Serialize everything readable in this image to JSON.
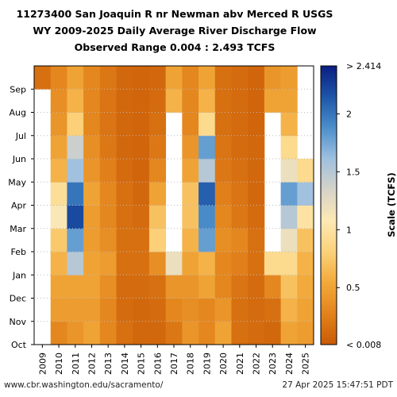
{
  "chart_data": {
    "type": "heatmap",
    "title_lines": [
      "11273400 San Joaquin R nr Newman abv Merced R USGS",
      "WY 2009-2025 Daily Average River Discharge Flow",
      "Observed Range 0.004 : 2.493 TCFS"
    ],
    "x_categories": [
      "2009",
      "2010",
      "2011",
      "2012",
      "2013",
      "2014",
      "2015",
      "2016",
      "2017",
      "2018",
      "2019",
      "2020",
      "2021",
      "2022",
      "2023",
      "2024",
      "2025"
    ],
    "y_month_labels": [
      "Oct",
      "Nov",
      "Dec",
      "Jan",
      "Feb",
      "Mar",
      "Apr",
      "May",
      "Jun",
      "Jul",
      "Aug",
      "Sep"
    ],
    "colorbar": {
      "label": "Scale (TCFS)",
      "range": [
        0.008,
        2.414
      ],
      "top_label": "> 2.414",
      "bottom_label": "< 0.008",
      "ticks": [
        {
          "value": 0.5,
          "label": "0.5"
        },
        {
          "value": 1,
          "label": "1"
        },
        {
          "value": 1.5,
          "label": "1.5"
        },
        {
          "value": 2,
          "label": "2"
        }
      ],
      "colors": [
        "#c95a05",
        "#e3831c",
        "#f3a93a",
        "#fbd27a",
        "#fde9b4",
        "#d6d3c8",
        "#9fc0df",
        "#4c8fcb",
        "#1d55a8",
        "#0a1e82"
      ]
    },
    "monthly_flow_tcfs": [
      [
        null,
        null,
        null,
        null,
        null,
        null,
        null,
        null,
        null,
        null,
        null,
        0.15
      ],
      [
        0.3,
        0.45,
        0.5,
        0.6,
        0.75,
        1.1,
        0.95,
        0.6,
        0.5,
        0.4,
        0.35,
        0.3
      ],
      [
        0.4,
        0.45,
        0.5,
        1.5,
        1.8,
        2.2,
        2.0,
        1.6,
        1.4,
        0.8,
        0.6,
        0.5
      ],
      [
        0.5,
        0.45,
        0.5,
        0.5,
        0.45,
        0.45,
        0.5,
        0.4,
        0.35,
        0.3,
        0.3,
        0.3
      ],
      [
        0.3,
        0.3,
        0.35,
        0.45,
        0.35,
        0.3,
        0.3,
        0.25,
        0.2,
        0.18,
        0.18,
        0.2
      ],
      [
        0.15,
        0.12,
        0.12,
        0.15,
        0.15,
        0.15,
        0.15,
        0.12,
        0.1,
        0.1,
        0.1,
        0.1
      ],
      [
        0.1,
        0.1,
        0.12,
        0.15,
        0.15,
        0.12,
        0.1,
        0.08,
        0.08,
        0.08,
        0.08,
        0.08
      ],
      [
        0.1,
        0.12,
        0.15,
        0.35,
        0.8,
        0.7,
        0.5,
        0.3,
        0.2,
        0.15,
        0.12,
        0.1
      ],
      [
        0.2,
        0.3,
        0.4,
        1.2,
        null,
        null,
        null,
        null,
        null,
        null,
        0.6,
        0.5
      ],
      [
        0.4,
        0.35,
        0.4,
        0.5,
        0.6,
        0.7,
        0.7,
        0.5,
        0.4,
        0.3,
        0.3,
        0.3
      ],
      [
        0.3,
        0.3,
        0.5,
        0.6,
        1.8,
        1.9,
        2.1,
        1.5,
        1.8,
        0.9,
        0.6,
        0.5
      ],
      [
        0.5,
        0.4,
        0.3,
        0.3,
        0.35,
        0.3,
        0.25,
        0.2,
        0.18,
        0.15,
        0.15,
        0.15
      ],
      [
        0.15,
        0.15,
        0.18,
        0.25,
        0.3,
        0.2,
        0.18,
        0.15,
        0.12,
        0.12,
        0.12,
        0.12
      ],
      [
        0.12,
        0.12,
        0.12,
        0.15,
        0.15,
        0.12,
        0.1,
        0.1,
        0.1,
        0.08,
        0.08,
        0.08
      ],
      [
        0.1,
        0.15,
        0.3,
        0.9,
        null,
        null,
        null,
        null,
        null,
        null,
        0.5,
        0.4
      ],
      [
        0.5,
        0.6,
        0.7,
        0.9,
        1.2,
        1.5,
        1.8,
        1.2,
        0.9,
        0.6,
        0.5,
        0.45
      ],
      [
        0.45,
        0.5,
        0.55,
        0.6,
        0.7,
        1.0,
        1.6,
        0.9,
        null,
        null,
        null,
        null
      ]
    ],
    "axes": {
      "ylabel": "",
      "xlabel": ""
    }
  },
  "footer": {
    "url": "www.cbr.washington.edu/sacramento/",
    "timestamp": "27 Apr 2025 15:47:51 PDT"
  }
}
